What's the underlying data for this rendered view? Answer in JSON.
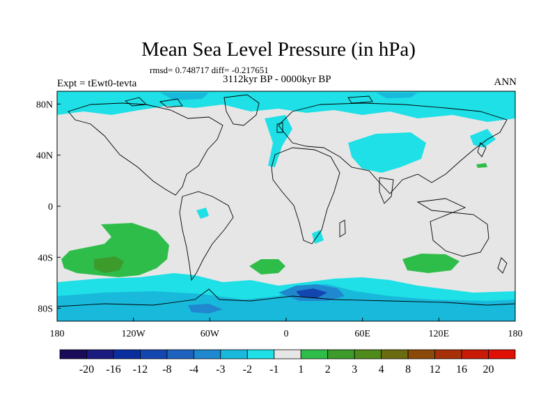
{
  "header": {
    "title": "Mean Sea Level Pressure (in hPa)",
    "stats": "rmsd= 0.748717 diff= -0.217651",
    "period": "3112kyr BP - 0000kyr BP",
    "experiment": "Expt = tEwt0-tevta",
    "season": "ANN"
  },
  "map": {
    "projection": "cylindrical-equidistant",
    "lon_range": [
      -180,
      180
    ],
    "lat_range": [
      -90,
      90
    ],
    "lat_labels": [
      "80N",
      "40N",
      "0",
      "40S",
      "80S"
    ],
    "lon_labels": [
      "180",
      "120W",
      "60W",
      "0",
      "60E",
      "120E",
      "180"
    ],
    "background_color": "#e6e6e6",
    "coastline_color": "#000000"
  },
  "colorbar": {
    "labels": [
      "-20",
      "-16",
      "-12",
      "-8",
      "-4",
      "-3",
      "-2",
      "-1",
      "1",
      "2",
      "3",
      "4",
      "8",
      "12",
      "16",
      "20"
    ],
    "colors": [
      "#1a0a5a",
      "#1a1a7f",
      "#0a2e9e",
      "#1446b0",
      "#1e62c0",
      "#1f88cf",
      "#19b9dc",
      "#1ee0e6",
      "#e6e6e6",
      "#2fbd4a",
      "#3d9b2c",
      "#4f8a1a",
      "#6b6b10",
      "#8c4a0a",
      "#a83008",
      "#c81a06",
      "#e01004"
    ]
  },
  "regions": [
    {
      "name": "arctic-band",
      "class": "-2 to -1"
    },
    {
      "name": "north-atlantic-ocean",
      "class": "-2 to -1"
    },
    {
      "name": "central-asia",
      "class": "-2 to -1"
    },
    {
      "name": "southern-ocean",
      "class": "-3 to -1"
    },
    {
      "name": "antarctic-coast",
      "class": "-8 to -3"
    },
    {
      "name": "south-pacific",
      "class": "1 to 3"
    },
    {
      "name": "south-atlantic",
      "class": "1 to 2"
    },
    {
      "name": "south-indian-ocean",
      "class": "1 to 2"
    }
  ]
}
